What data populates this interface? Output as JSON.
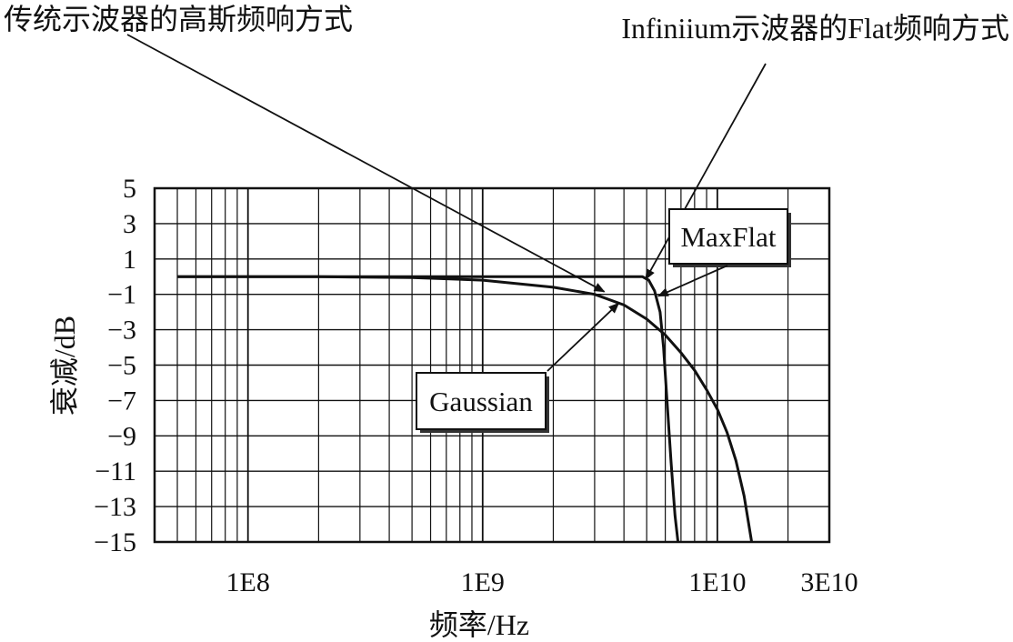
{
  "chart_data": {
    "type": "line",
    "xlabel": "频率/Hz",
    "ylabel": "衰减/dB",
    "x_scale": "log",
    "xlim": [
      40000000,
      30000000000
    ],
    "ylim": [
      -15,
      5
    ],
    "x_tick_labels": [
      {
        "value": 100000000,
        "label": "1E8"
      },
      {
        "value": 1000000000,
        "label": "1E9"
      },
      {
        "value": 10000000000,
        "label": "1E10"
      },
      {
        "value": 30000000000,
        "label": "3E10"
      }
    ],
    "y_tick_labels": [
      {
        "value": 5,
        "label": "5"
      },
      {
        "value": 3,
        "label": "3"
      },
      {
        "value": 1,
        "label": "1"
      },
      {
        "value": -1,
        "label": "−1"
      },
      {
        "value": -3,
        "label": "−3"
      },
      {
        "value": -5,
        "label": "−5"
      },
      {
        "value": -7,
        "label": "−7"
      },
      {
        "value": -9,
        "label": "−9"
      },
      {
        "value": -11,
        "label": "−11"
      },
      {
        "value": -13,
        "label": "−13"
      },
      {
        "value": -15,
        "label": "−15"
      }
    ],
    "grid": true,
    "series": [
      {
        "name": "Gaussian",
        "points": [
          [
            50000000,
            0
          ],
          [
            200000000,
            0
          ],
          [
            500000000,
            -0.05
          ],
          [
            1000000000,
            -0.2
          ],
          [
            2000000000,
            -0.6
          ],
          [
            3000000000,
            -1.0
          ],
          [
            4000000000,
            -1.6
          ],
          [
            5000000000,
            -2.4
          ],
          [
            6000000000,
            -3.3
          ],
          [
            7000000000,
            -4.3
          ],
          [
            8000000000,
            -5.3
          ],
          [
            9000000000,
            -6.4
          ],
          [
            10000000000,
            -7.5
          ],
          [
            11000000000,
            -8.8
          ],
          [
            12000000000,
            -10.4
          ],
          [
            13000000000,
            -12.4
          ],
          [
            14000000000,
            -15
          ]
        ]
      },
      {
        "name": "MaxFlat",
        "points": [
          [
            50000000,
            0
          ],
          [
            1000000000,
            0
          ],
          [
            4000000000,
            0
          ],
          [
            4800000000,
            0
          ],
          [
            5100000000,
            -0.2
          ],
          [
            5400000000,
            -0.8
          ],
          [
            5700000000,
            -2.0
          ],
          [
            5900000000,
            -4.0
          ],
          [
            6100000000,
            -7.0
          ],
          [
            6350000000,
            -10.5
          ],
          [
            6600000000,
            -13.5
          ],
          [
            6800000000,
            -15
          ]
        ]
      }
    ],
    "annotations": [
      {
        "text": "传统示波器的高斯频响方式",
        "points_to": [
          3300000000,
          -0.85
        ]
      },
      {
        "text": "Infiniium示波器的Flat频响方式",
        "points_to": [
          4950000000,
          -0.15
        ]
      }
    ],
    "boxed_labels": [
      {
        "text": "Gaussian",
        "points_to": [
          3800000000,
          -1.5
        ]
      },
      {
        "text": "MaxFlat",
        "points_to": [
          5600000000,
          -1.1
        ]
      }
    ]
  }
}
